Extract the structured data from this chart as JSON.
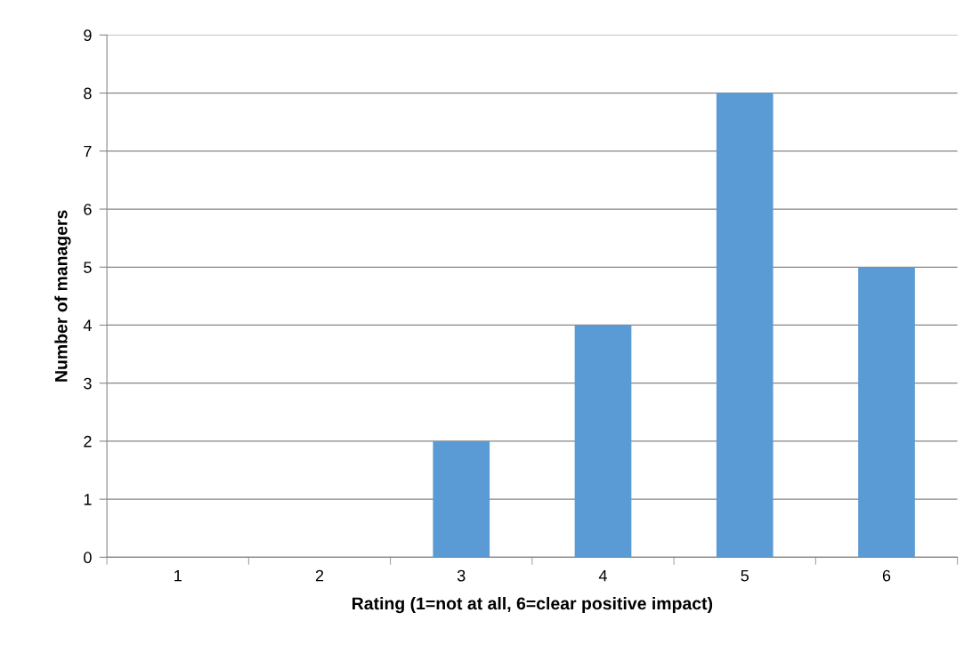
{
  "chart_data": {
    "type": "bar",
    "xlabel": "Rating (1=not at all, 6=clear positive impact)",
    "ylabel": "Number of managers",
    "categories": [
      "1",
      "2",
      "3",
      "4",
      "5",
      "6"
    ],
    "values": [
      0,
      0,
      2,
      4,
      8,
      5
    ],
    "color": "#5b9bd5",
    "ylim": [
      0,
      9
    ],
    "yticks": [
      0,
      1,
      2,
      3,
      4,
      5,
      6,
      7,
      8,
      9
    ],
    "grid": "y"
  }
}
